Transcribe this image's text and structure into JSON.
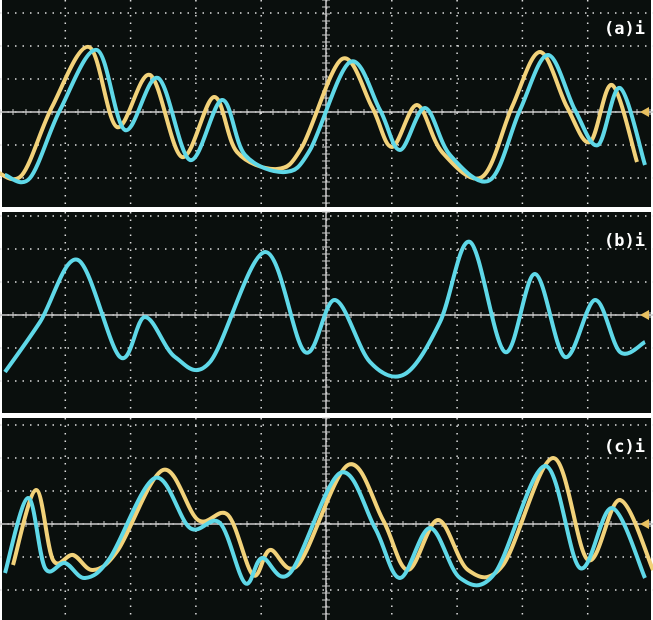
{
  "panels": [
    {
      "label": "(a)i"
    },
    {
      "label": "(b)i"
    },
    {
      "label": "(c)i"
    }
  ]
}
